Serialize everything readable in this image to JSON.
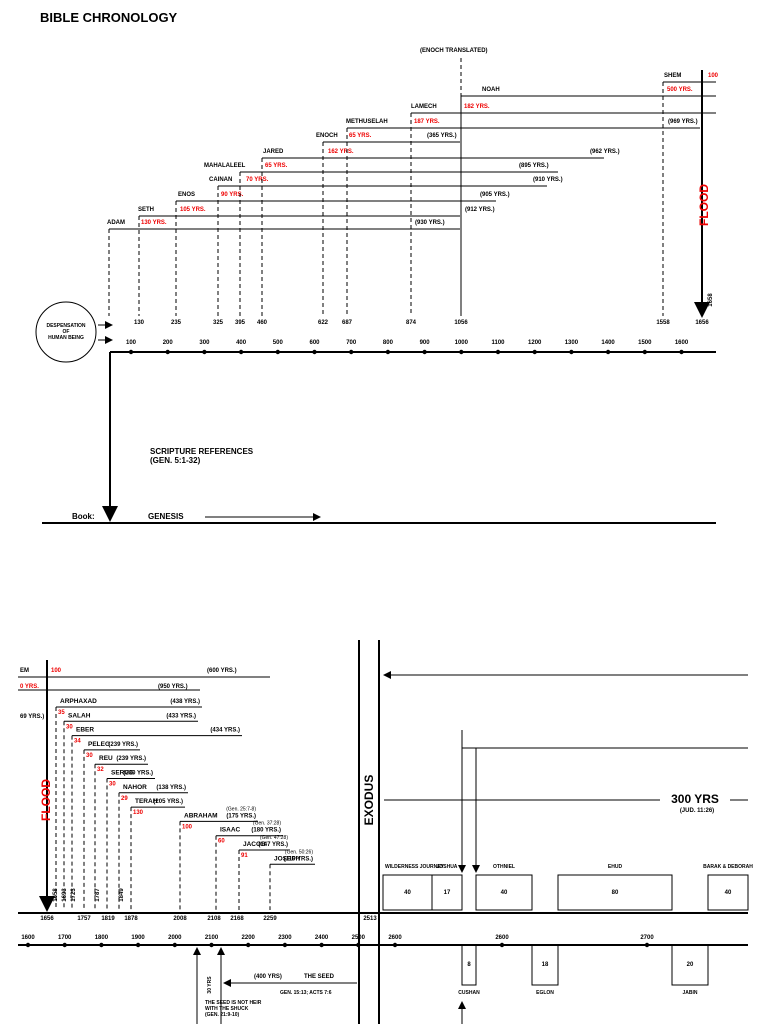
{
  "title": "BIBLE CHRONOLOGY",
  "top": {
    "enoch_note": "(ENOCH TRANSLATED)",
    "people": [
      {
        "name": "ADAM",
        "begat": "130 YRS.",
        "lifespan": "(930 YRS.)"
      },
      {
        "name": "SETH",
        "begat": "105 YRS.",
        "lifespan": "(912 YRS.)"
      },
      {
        "name": "ENOS",
        "begat": "90 YRS.",
        "lifespan": "(905 YRS.)"
      },
      {
        "name": "CAINAN",
        "begat": "70 YRS.",
        "lifespan": "(910 YRS.)"
      },
      {
        "name": "MAHALALEEL",
        "begat": "65 YRS.",
        "lifespan": "(895 YRS.)"
      },
      {
        "name": "JARED",
        "begat": "162 YRS.",
        "lifespan": "(962 YRS.)"
      },
      {
        "name": "ENOCH",
        "begat": "65 YRS.",
        "lifespan": "(365 YRS.)"
      },
      {
        "name": "METHUSELAH",
        "begat": "187 YRS.",
        "lifespan": "(969 YRS.)"
      },
      {
        "name": "LAMECH",
        "begat": "182 YRS."
      },
      {
        "name": "NOAH",
        "begat": "500 YRS."
      },
      {
        "name": "SHEM",
        "begat": "100"
      }
    ],
    "years": [
      130,
      235,
      325,
      395,
      460,
      622,
      687,
      874,
      1056,
      1558,
      1656
    ],
    "axis_ticks": [
      100,
      200,
      300,
      400,
      500,
      600,
      700,
      800,
      900,
      1000,
      1100,
      1200,
      1300,
      1400,
      1500,
      1600
    ],
    "circle_label": [
      "DESPENSATION",
      "OF",
      "HUMAN BEING"
    ],
    "flood": "FLOOD",
    "flood_year": "1658",
    "scripture": [
      "SCRIPTURE REFERENCES",
      "(GEN. 5:1-32)"
    ],
    "book_label": "Book:",
    "book": "GENESIS"
  },
  "bottom": {
    "people": [
      {
        "name": "ARPHAXAD",
        "begat": "35",
        "lifespan": "(438 YRS.)"
      },
      {
        "name": "SALAH",
        "begat": "30",
        "lifespan": "(433 YRS.)"
      },
      {
        "name": "EBER",
        "begat": "34",
        "lifespan": "(434 YRS.)"
      },
      {
        "name": "PELEG",
        "begat": "30",
        "lifespan": "(239 YRS.)"
      },
      {
        "name": "REU",
        "begat": "32",
        "lifespan": "(239 YRS.)"
      },
      {
        "name": "SERUG",
        "begat": "30",
        "lifespan": "(230 YRS.)"
      },
      {
        "name": "NAHOR",
        "begat": "29",
        "lifespan": "(138 YRS.)"
      },
      {
        "name": "TERAH",
        "begat": "130",
        "lifespan": "(205 YRS.)"
      },
      {
        "name": "ABRAHAM",
        "begat": "100",
        "lifespan": "(175 YRS.)",
        "ref": "(Gen. 25:7-8)"
      },
      {
        "name": "ISAAC",
        "begat": "60",
        "lifespan": "(180 YRS.)",
        "ref": "(Gen. 37:28)"
      },
      {
        "name": "JACOB",
        "begat": "91",
        "lifespan": "(147 YRS.)",
        "ref": "(Gen. 47:28)"
      },
      {
        "name": "JOSEPH",
        "lifespan": "(110 YRS.)",
        "ref": "(Gen. 50:26)"
      }
    ],
    "shem": {
      "name": "EM",
      "begat": "100",
      "lifespan": "(600 YRS.)"
    },
    "noah": {
      "begat": "0 YRS.",
      "lifespan": "(950 YRS.)"
    },
    "methuselah_lifespan": "69 YRS.)",
    "flood": "FLOOD",
    "years": [
      1656,
      1658,
      1693,
      1723,
      1757,
      1787,
      1819,
      1849,
      1878,
      2008,
      2108,
      2168,
      2259,
      2513
    ],
    "axis_ticks": [
      1600,
      1700,
      1800,
      1900,
      2000,
      2100,
      2200,
      2300,
      2400,
      2500,
      2600
    ],
    "axis_ticks_2": [
      2600,
      2700
    ],
    "exodus": "EXODUS",
    "period": "300 YRS",
    "period_ref": "(JUD. 11:26)",
    "judges": [
      {
        "name": "WILDERNESS JOURNEY",
        "years": 40
      },
      {
        "name": "JOSHUA",
        "years": 17
      },
      {
        "name": "OTHNIEL",
        "years": 40
      },
      {
        "name": "EHUD",
        "years": 80
      },
      {
        "name": "BARAK & DEBORAH",
        "years": 40
      }
    ],
    "oppressions": [
      {
        "name": "CUSHAN",
        "years": 8
      },
      {
        "name": "EGLON",
        "years": 18
      },
      {
        "name": "JABIN",
        "years": 20
      }
    ],
    "seed_span": "30 YRS",
    "seed_period": "(400 YRS)",
    "seed": "THE SEED",
    "seed_ref": "GEN. 15:13; ACTS 7:6",
    "seed_note": [
      "THE SEED IS NOT HEIR",
      "WITH THE SHUCK",
      "(GEN. 21:9-10)"
    ]
  }
}
